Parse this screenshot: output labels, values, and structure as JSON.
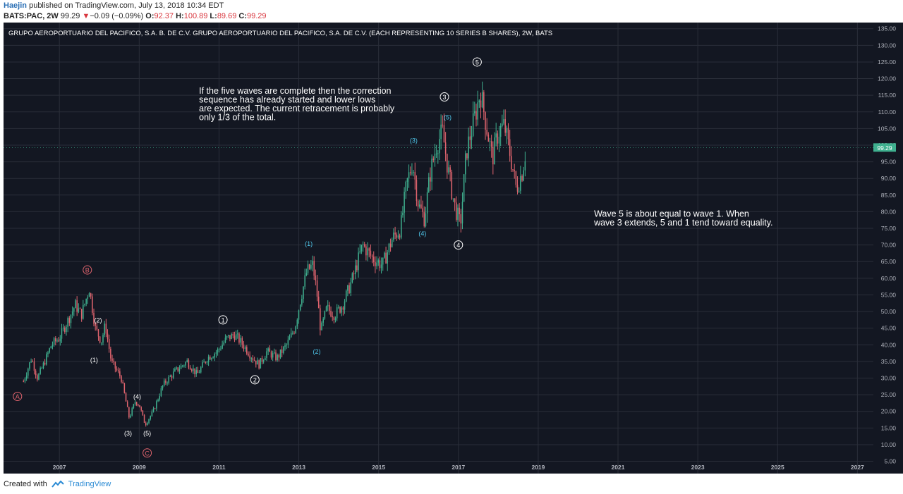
{
  "header": {
    "user": "Haejin",
    "published": "published on TradingView.com, July 13, 2018 10:34 EDT",
    "symbol": "BATS:PAC, 2W",
    "last": "99.29",
    "change_arrow": "▼",
    "change": "−0.09 (−0.09%)",
    "o_label": "O:",
    "o_value": "92.37",
    "h_label": "H:",
    "h_value": "100.89",
    "l_label": "L:",
    "l_value": "89.69",
    "c_label": "C:",
    "c_value": "99.29"
  },
  "footer": {
    "created_with": "Created with",
    "brand": "TradingView"
  },
  "colors": {
    "background": "#131722",
    "up": "#3fb08f",
    "down": "#e0646e",
    "grid": "#2a2e39",
    "text": "#ffffff",
    "axis_text": "#b2b5be",
    "wave_white": "#ffffff",
    "wave_cyan": "#4fc8ec",
    "wave_red": "#e0646e",
    "price_badge": "#3fb08f"
  },
  "chart_data": {
    "type": "candlestick",
    "title": "GRUPO AEROPORTUARIO DEL PACIFICO, S.A. B. DE C.V. GRUPO AEROPORTUARIO DEL PACIFICO, S.A. DE C.V. (EACH REPRESENTING 10 SERIES B SHARES), 2W, BATS",
    "x_ticks": [
      "2007",
      "2009",
      "2011",
      "2013",
      "2015",
      "2017",
      "2019",
      "2021",
      "2023",
      "2025",
      "2027"
    ],
    "x_tick_years": [
      2007,
      2009,
      2011,
      2013,
      2015,
      2017,
      2019,
      2021,
      2023,
      2025,
      2027
    ],
    "y_ticks": [
      "5.00",
      "10.00",
      "15.00",
      "20.00",
      "25.00",
      "30.00",
      "35.00",
      "40.00",
      "45.00",
      "50.00",
      "55.00",
      "60.00",
      "65.00",
      "70.00",
      "75.00",
      "80.00",
      "85.00",
      "90.00",
      "95.00",
      "100.00",
      "105.00",
      "110.00",
      "115.00",
      "120.00",
      "125.00",
      "130.00",
      "135.00"
    ],
    "ylim": [
      3,
      136
    ],
    "xlim": [
      2005.6,
      2027.4
    ],
    "last_price_label": "99.29",
    "last_price": 99.29,
    "path_points": [
      [
        2006.1,
        29
      ],
      [
        2006.3,
        36
      ],
      [
        2006.45,
        30
      ],
      [
        2006.6,
        34
      ],
      [
        2006.8,
        40
      ],
      [
        2007.0,
        42
      ],
      [
        2007.2,
        47
      ],
      [
        2007.4,
        52
      ],
      [
        2007.55,
        49
      ],
      [
        2007.75,
        57
      ],
      [
        2007.9,
        45
      ],
      [
        2008.05,
        41
      ],
      [
        2008.15,
        46
      ],
      [
        2008.3,
        35
      ],
      [
        2008.55,
        30
      ],
      [
        2008.75,
        18
      ],
      [
        2008.9,
        23
      ],
      [
        2009.0,
        22
      ],
      [
        2009.15,
        16
      ],
      [
        2009.35,
        20
      ],
      [
        2009.6,
        28
      ],
      [
        2009.9,
        32
      ],
      [
        2010.2,
        35
      ],
      [
        2010.45,
        31
      ],
      [
        2010.7,
        36
      ],
      [
        2010.95,
        38
      ],
      [
        2011.2,
        42
      ],
      [
        2011.4,
        43
      ],
      [
        2011.6,
        40
      ],
      [
        2011.85,
        36
      ],
      [
        2012.0,
        34
      ],
      [
        2012.2,
        38
      ],
      [
        2012.45,
        36
      ],
      [
        2012.7,
        40
      ],
      [
        2012.9,
        45
      ],
      [
        2013.05,
        54
      ],
      [
        2013.2,
        62
      ],
      [
        2013.35,
        64
      ],
      [
        2013.45,
        56
      ],
      [
        2013.55,
        44
      ],
      [
        2013.7,
        51
      ],
      [
        2013.9,
        49
      ],
      [
        2014.1,
        52
      ],
      [
        2014.35,
        60
      ],
      [
        2014.6,
        70
      ],
      [
        2014.85,
        66
      ],
      [
        2015.1,
        64
      ],
      [
        2015.35,
        72
      ],
      [
        2015.55,
        75
      ],
      [
        2015.7,
        88
      ],
      [
        2015.85,
        95
      ],
      [
        2016.0,
        82
      ],
      [
        2016.15,
        78
      ],
      [
        2016.3,
        92
      ],
      [
        2016.45,
        100
      ],
      [
        2016.6,
        104
      ],
      [
        2016.75,
        92
      ],
      [
        2016.9,
        82
      ],
      [
        2017.05,
        76
      ],
      [
        2017.2,
        98
      ],
      [
        2017.4,
        108
      ],
      [
        2017.55,
        116
      ],
      [
        2017.7,
        106
      ],
      [
        2017.85,
        96
      ],
      [
        2018.0,
        104
      ],
      [
        2018.15,
        106
      ],
      [
        2018.3,
        97
      ],
      [
        2018.45,
        87
      ],
      [
        2018.6,
        92
      ],
      [
        2018.7,
        99.29
      ]
    ],
    "wave_labels": [
      {
        "text": "A",
        "year": 2005.95,
        "price": 24.5,
        "style": "circle",
        "color": "red"
      },
      {
        "text": "B",
        "year": 2007.7,
        "price": 62.5,
        "style": "circle",
        "color": "red"
      },
      {
        "text": "C",
        "year": 2009.2,
        "price": 7.5,
        "style": "circle",
        "color": "red"
      },
      {
        "text": "(1)",
        "year": 2007.87,
        "price": 35.5,
        "style": "paren",
        "color": "white"
      },
      {
        "text": "(2)",
        "year": 2007.97,
        "price": 47.5,
        "style": "paren",
        "color": "white"
      },
      {
        "text": "(3)",
        "year": 2008.72,
        "price": 13.5,
        "style": "paren",
        "color": "white"
      },
      {
        "text": "(4)",
        "year": 2008.95,
        "price": 24.5,
        "style": "paren",
        "color": "white"
      },
      {
        "text": "(5)",
        "year": 2009.2,
        "price": 13.5,
        "style": "paren",
        "color": "white"
      },
      {
        "text": "1",
        "year": 2011.1,
        "price": 47.5,
        "style": "circle",
        "color": "white"
      },
      {
        "text": "2",
        "year": 2011.9,
        "price": 29.5,
        "style": "circle",
        "color": "white"
      },
      {
        "text": "(1)",
        "year": 2013.25,
        "price": 70.5,
        "style": "paren",
        "color": "cyan"
      },
      {
        "text": "(2)",
        "year": 2013.45,
        "price": 38.0,
        "style": "paren",
        "color": "cyan"
      },
      {
        "text": "(3)",
        "year": 2015.88,
        "price": 101.5,
        "style": "paren",
        "color": "cyan"
      },
      {
        "text": "(4)",
        "year": 2016.1,
        "price": 73.5,
        "style": "paren",
        "color": "cyan"
      },
      {
        "text": "(5)",
        "year": 2016.73,
        "price": 108.5,
        "style": "paren",
        "color": "cyan"
      },
      {
        "text": "3",
        "year": 2016.65,
        "price": 114.5,
        "style": "circle",
        "color": "white"
      },
      {
        "text": "4",
        "year": 2017.0,
        "price": 70.0,
        "style": "circle",
        "color": "white"
      },
      {
        "text": "5",
        "year": 2017.47,
        "price": 125.0,
        "style": "circle",
        "color": "white"
      }
    ],
    "annotations": [
      {
        "lines": [
          "If the five waves are complete then the correction",
          "sequence has already started and lower lows",
          "are expected. The current retracement is probably",
          "only 1/3 of the total."
        ],
        "year": 2010.5,
        "price": 115.5
      },
      {
        "lines": [
          "Wave 5 is about equal to wave 1. When",
          "wave 3 extends, 5 and 1 tend toward equality."
        ],
        "year": 2020.4,
        "price": 78.5
      }
    ]
  }
}
